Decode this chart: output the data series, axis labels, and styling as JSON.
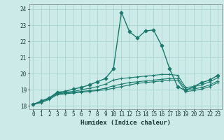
{
  "title": "",
  "xlabel": "Humidex (Indice chaleur)",
  "ylabel": "",
  "background_color": "#cceae8",
  "grid_color": "#aad4d0",
  "line_color": "#1a7a6e",
  "xlim": [
    -0.5,
    23.5
  ],
  "ylim": [
    17.8,
    24.3
  ],
  "xticks": [
    0,
    1,
    2,
    3,
    4,
    5,
    6,
    7,
    8,
    9,
    10,
    11,
    12,
    13,
    14,
    15,
    16,
    17,
    18,
    19,
    20,
    21,
    22,
    23
  ],
  "yticks": [
    18,
    19,
    20,
    21,
    22,
    23,
    24
  ],
  "series": [
    [
      18.1,
      18.3,
      18.5,
      18.85,
      18.9,
      19.05,
      19.15,
      19.3,
      19.5,
      19.7,
      20.3,
      23.8,
      22.6,
      22.2,
      22.65,
      22.7,
      21.75,
      20.3,
      19.2,
      18.95,
      19.2,
      19.45,
      19.6,
      19.9
    ],
    [
      18.1,
      18.3,
      18.5,
      18.8,
      18.85,
      18.9,
      19.0,
      19.1,
      19.2,
      19.35,
      19.6,
      19.7,
      19.75,
      19.8,
      19.85,
      19.9,
      19.95,
      19.95,
      19.9,
      19.15,
      19.2,
      19.3,
      19.5,
      19.75
    ],
    [
      18.1,
      18.25,
      18.45,
      18.75,
      18.8,
      18.85,
      18.9,
      18.95,
      19.0,
      19.1,
      19.25,
      19.35,
      19.45,
      19.5,
      19.55,
      19.6,
      19.65,
      19.7,
      19.7,
      19.05,
      19.05,
      19.15,
      19.3,
      19.55
    ],
    [
      18.1,
      18.2,
      18.4,
      18.7,
      18.75,
      18.8,
      18.85,
      18.9,
      18.95,
      19.0,
      19.1,
      19.2,
      19.3,
      19.4,
      19.45,
      19.5,
      19.55,
      19.6,
      19.6,
      18.9,
      18.95,
      19.05,
      19.2,
      19.45
    ]
  ]
}
